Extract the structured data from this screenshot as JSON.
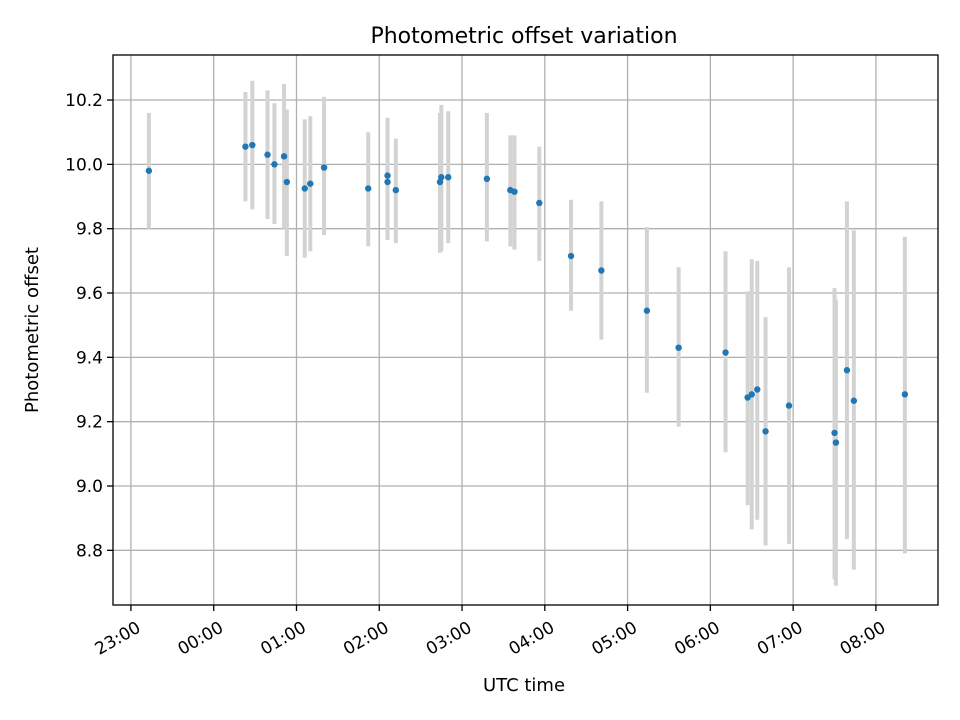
{
  "chart_data": {
    "type": "scatter",
    "title": "Photometric offset variation",
    "xlabel": "UTC time",
    "ylabel": "Photometric offset",
    "grid": true,
    "colors": {
      "points": "#1f77b4",
      "errorbars": "#d3d3d3"
    },
    "x_tick_labels": [
      "23:00",
      "00:00",
      "01:00",
      "02:00",
      "03:00",
      "04:00",
      "05:00",
      "06:00",
      "07:00",
      "08:00"
    ],
    "y_ticks": [
      8.8,
      9.0,
      9.2,
      9.4,
      9.6,
      9.8,
      10.0,
      10.2
    ],
    "y_tick_labels": [
      "8.8",
      "9.0",
      "9.2",
      "9.4",
      "9.6",
      "9.8",
      "10.0",
      "10.2"
    ],
    "ylim": [
      8.63,
      10.34
    ],
    "xlim": [
      "22:47",
      "08:45"
    ],
    "points": [
      {
        "time": "23:13",
        "y": 9.98,
        "low": 9.8,
        "high": 10.16
      },
      {
        "time": "00:23",
        "y": 10.055,
        "low": 9.885,
        "high": 10.225
      },
      {
        "time": "00:28",
        "y": 10.06,
        "low": 9.86,
        "high": 10.26
      },
      {
        "time": "00:39",
        "y": 10.03,
        "low": 9.83,
        "high": 10.23
      },
      {
        "time": "00:44",
        "y": 10.0,
        "low": 9.815,
        "high": 10.19
      },
      {
        "time": "00:51",
        "y": 10.025,
        "low": 9.8,
        "high": 10.25
      },
      {
        "time": "00:53",
        "y": 9.945,
        "low": 9.715,
        "high": 10.17
      },
      {
        "time": "01:06",
        "y": 9.925,
        "low": 9.71,
        "high": 10.14
      },
      {
        "time": "01:10",
        "y": 9.94,
        "low": 9.73,
        "high": 10.15
      },
      {
        "time": "01:20",
        "y": 9.99,
        "low": 9.78,
        "high": 10.21
      },
      {
        "time": "01:52",
        "y": 9.925,
        "low": 9.745,
        "high": 10.1
      },
      {
        "time": "02:06",
        "y": 9.965,
        "low": 9.765,
        "high": 10.145
      },
      {
        "time": "02:06",
        "y": 9.945,
        "low": 9.765,
        "high": 10.125
      },
      {
        "time": "02:12",
        "y": 9.92,
        "low": 9.755,
        "high": 10.08
      },
      {
        "time": "02:44",
        "y": 9.945,
        "low": 9.725,
        "high": 10.16
      },
      {
        "time": "02:45",
        "y": 9.96,
        "low": 9.73,
        "high": 10.185
      },
      {
        "time": "02:50",
        "y": 9.96,
        "low": 9.755,
        "high": 10.165
      },
      {
        "time": "03:18",
        "y": 9.955,
        "low": 9.76,
        "high": 10.16
      },
      {
        "time": "03:35",
        "y": 9.92,
        "low": 9.745,
        "high": 10.09
      },
      {
        "time": "03:38",
        "y": 9.915,
        "low": 9.735,
        "high": 10.09
      },
      {
        "time": "03:56",
        "y": 9.88,
        "low": 9.7,
        "high": 10.055
      },
      {
        "time": "04:19",
        "y": 9.715,
        "low": 9.545,
        "high": 9.89
      },
      {
        "time": "04:41",
        "y": 9.67,
        "low": 9.455,
        "high": 9.885
      },
      {
        "time": "05:14",
        "y": 9.545,
        "low": 9.29,
        "high": 9.805
      },
      {
        "time": "05:37",
        "y": 9.43,
        "low": 9.185,
        "high": 9.68
      },
      {
        "time": "06:11",
        "y": 9.415,
        "low": 9.105,
        "high": 9.73
      },
      {
        "time": "06:27",
        "y": 9.275,
        "low": 8.94,
        "high": 9.605
      },
      {
        "time": "06:30",
        "y": 9.285,
        "low": 8.865,
        "high": 9.705
      },
      {
        "time": "06:34",
        "y": 9.3,
        "low": 8.895,
        "high": 9.7
      },
      {
        "time": "06:40",
        "y": 9.17,
        "low": 8.815,
        "high": 9.525
      },
      {
        "time": "06:57",
        "y": 9.25,
        "low": 8.82,
        "high": 9.68
      },
      {
        "time": "07:30",
        "y": 9.165,
        "low": 8.71,
        "high": 9.615
      },
      {
        "time": "07:31",
        "y": 9.135,
        "low": 8.69,
        "high": 9.58
      },
      {
        "time": "07:39",
        "y": 9.36,
        "low": 8.835,
        "high": 9.885
      },
      {
        "time": "07:44",
        "y": 9.265,
        "low": 8.74,
        "high": 9.795
      },
      {
        "time": "08:21",
        "y": 9.285,
        "low": 8.79,
        "high": 9.775
      }
    ]
  }
}
